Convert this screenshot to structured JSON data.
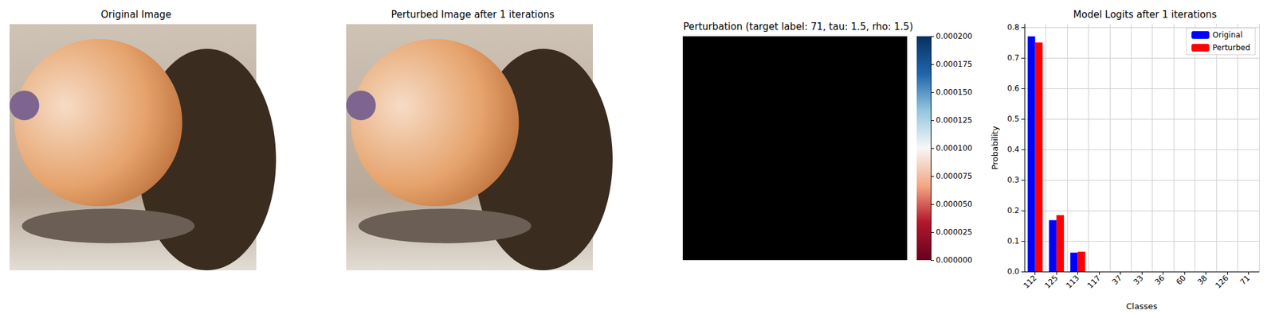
{
  "chart_data": [
    {
      "type": "image",
      "title": "Original Image"
    },
    {
      "type": "image",
      "title": "Perturbed Image after 1 iterations"
    },
    {
      "type": "image",
      "title": "Perturbation (target label: 71, tau: 1.5, rho: 1.5)",
      "colorbar": {
        "range": [
          0,
          0.0002
        ],
        "ticks": [
          {
            "value": 0,
            "label": "0.000000"
          },
          {
            "value": 2.5e-05,
            "label": "0.000025"
          },
          {
            "value": 5e-05,
            "label": "0.000050"
          },
          {
            "value": 7.5e-05,
            "label": "0.000075"
          },
          {
            "value": 0.0001,
            "label": "0.000100"
          },
          {
            "value": 0.000125,
            "label": "0.000125"
          },
          {
            "value": 0.00015,
            "label": "0.000150"
          },
          {
            "value": 0.000175,
            "label": "0.000175"
          },
          {
            "value": 0.0002,
            "label": "0.000200"
          }
        ]
      }
    },
    {
      "type": "bar",
      "title": "Model Logits after 1 iterations",
      "x_label": "Classes",
      "y_label": "Probability",
      "categories": [
        "112",
        "125",
        "113",
        "117",
        "37",
        "33",
        "36",
        "60",
        "38",
        "126",
        "71"
      ],
      "series": [
        {
          "name": "Original",
          "color": "#0000ff",
          "values": [
            0.77,
            0.168,
            0.062,
            0,
            0,
            0,
            0,
            0,
            0,
            0,
            0
          ]
        },
        {
          "name": "Perturbed",
          "color": "#ff0000",
          "values": [
            0.75,
            0.185,
            0.065,
            0,
            0,
            0,
            0,
            0,
            0,
            0,
            0
          ]
        }
      ],
      "ylim": [
        0,
        0.81
      ],
      "yticks": [
        {
          "value": 0,
          "label": "0.0"
        },
        0.1,
        0.2,
        0.3,
        0.4,
        0.5,
        0.6,
        0.7,
        0.8
      ],
      "grid": true,
      "legend": "upper right"
    }
  ]
}
